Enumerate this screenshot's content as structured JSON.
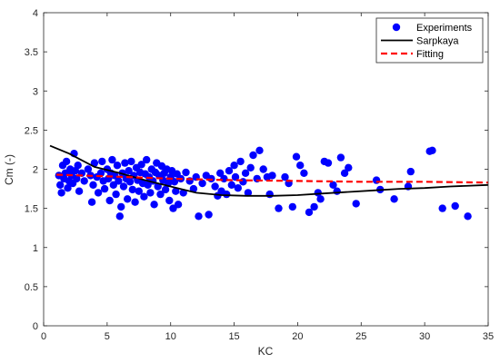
{
  "chart_data": {
    "type": "scatter",
    "title": "",
    "xlabel": "KC",
    "ylabel": "Cm (-)",
    "xlim": [
      0,
      35
    ],
    "ylim": [
      0,
      4
    ],
    "xticks": [
      0,
      5,
      10,
      15,
      20,
      25,
      30,
      35
    ],
    "yticks": [
      0,
      0.5,
      1,
      1.5,
      2,
      2.5,
      3,
      3.5,
      4
    ],
    "xtick_labels": [
      "0",
      "5",
      "10",
      "15",
      "20",
      "25",
      "30",
      "35"
    ],
    "ytick_labels": [
      "0",
      "0.5",
      "1",
      "1.5",
      "2",
      "2.5",
      "3",
      "3.5",
      "4"
    ],
    "grid": false,
    "legend_position": "top-right",
    "series": [
      {
        "name": "Experiments",
        "kind": "scatter",
        "color": "#0000ff",
        "points": [
          [
            1.2,
            1.92
          ],
          [
            1.3,
            1.8
          ],
          [
            1.4,
            1.7
          ],
          [
            1.5,
            2.05
          ],
          [
            1.6,
            1.88
          ],
          [
            1.7,
            1.95
          ],
          [
            1.8,
            2.1
          ],
          [
            1.9,
            1.76
          ],
          [
            2.0,
            1.85
          ],
          [
            2.1,
            2.0
          ],
          [
            2.2,
            1.92
          ],
          [
            2.3,
            1.82
          ],
          [
            2.4,
            2.2
          ],
          [
            2.5,
            1.98
          ],
          [
            2.6,
            1.88
          ],
          [
            2.7,
            2.05
          ],
          [
            2.8,
            1.72
          ],
          [
            3.0,
            1.95
          ],
          [
            3.2,
            1.85
          ],
          [
            3.5,
            2.0
          ],
          [
            3.7,
            1.92
          ],
          [
            3.8,
            1.58
          ],
          [
            3.9,
            1.8
          ],
          [
            4.0,
            2.08
          ],
          [
            4.2,
            1.9
          ],
          [
            4.3,
            1.7
          ],
          [
            4.5,
            1.95
          ],
          [
            4.6,
            2.1
          ],
          [
            4.7,
            1.85
          ],
          [
            4.8,
            1.75
          ],
          [
            5.0,
            2.0
          ],
          [
            5.1,
            1.88
          ],
          [
            5.2,
            1.6
          ],
          [
            5.3,
            1.95
          ],
          [
            5.4,
            2.12
          ],
          [
            5.5,
            1.8
          ],
          [
            5.6,
            1.92
          ],
          [
            5.7,
            1.68
          ],
          [
            5.8,
            2.05
          ],
          [
            5.9,
            1.85
          ],
          [
            6.0,
            1.4
          ],
          [
            6.1,
            1.52
          ],
          [
            6.2,
            1.95
          ],
          [
            6.3,
            1.78
          ],
          [
            6.4,
            2.08
          ],
          [
            6.5,
            1.88
          ],
          [
            6.6,
            1.62
          ],
          [
            6.7,
            1.98
          ],
          [
            6.8,
            1.84
          ],
          [
            6.9,
            2.1
          ],
          [
            7.0,
            1.74
          ],
          [
            7.1,
            1.92
          ],
          [
            7.2,
            1.58
          ],
          [
            7.3,
            2.02
          ],
          [
            7.4,
            1.86
          ],
          [
            7.5,
            1.72
          ],
          [
            7.6,
            1.96
          ],
          [
            7.7,
            2.06
          ],
          [
            7.8,
            1.82
          ],
          [
            7.9,
            1.65
          ],
          [
            8.0,
            1.94
          ],
          [
            8.1,
            2.12
          ],
          [
            8.2,
            1.8
          ],
          [
            8.3,
            1.9
          ],
          [
            8.4,
            1.7
          ],
          [
            8.5,
            2.0
          ],
          [
            8.6,
            1.85
          ],
          [
            8.7,
            1.55
          ],
          [
            8.8,
            1.96
          ],
          [
            8.9,
            2.08
          ],
          [
            9.0,
            1.78
          ],
          [
            9.1,
            1.92
          ],
          [
            9.2,
            1.68
          ],
          [
            9.3,
            2.04
          ],
          [
            9.4,
            1.86
          ],
          [
            9.5,
            1.95
          ],
          [
            9.6,
            1.74
          ],
          [
            9.7,
            2.0
          ],
          [
            9.8,
            1.82
          ],
          [
            9.9,
            1.6
          ],
          [
            10.0,
            1.9
          ],
          [
            10.1,
            1.98
          ],
          [
            10.2,
            1.5
          ],
          [
            10.3,
            1.84
          ],
          [
            10.4,
            1.72
          ],
          [
            10.5,
            1.94
          ],
          [
            10.6,
            1.55
          ],
          [
            10.8,
            1.88
          ],
          [
            11.0,
            1.7
          ],
          [
            11.2,
            1.96
          ],
          [
            11.5,
            1.85
          ],
          [
            11.8,
            1.75
          ],
          [
            12.0,
            1.9
          ],
          [
            12.2,
            1.4
          ],
          [
            12.5,
            1.82
          ],
          [
            12.8,
            1.92
          ],
          [
            13.0,
            1.42
          ],
          [
            13.2,
            1.88
          ],
          [
            13.5,
            1.78
          ],
          [
            13.7,
            1.66
          ],
          [
            13.9,
            1.95
          ],
          [
            14.0,
            1.72
          ],
          [
            14.2,
            1.88
          ],
          [
            14.4,
            1.68
          ],
          [
            14.6,
            1.98
          ],
          [
            14.8,
            1.8
          ],
          [
            15.0,
            2.05
          ],
          [
            15.1,
            1.9
          ],
          [
            15.3,
            1.76
          ],
          [
            15.5,
            2.1
          ],
          [
            15.7,
            1.84
          ],
          [
            15.9,
            1.95
          ],
          [
            16.1,
            1.7
          ],
          [
            16.3,
            2.02
          ],
          [
            16.5,
            2.18
          ],
          [
            16.8,
            1.88
          ],
          [
            17.0,
            2.24
          ],
          [
            17.3,
            2.0
          ],
          [
            17.6,
            1.9
          ],
          [
            17.8,
            1.68
          ],
          [
            18.0,
            1.92
          ],
          [
            18.5,
            1.5
          ],
          [
            19.0,
            1.9
          ],
          [
            19.3,
            1.82
          ],
          [
            19.6,
            1.52
          ],
          [
            19.9,
            2.16
          ],
          [
            20.2,
            2.05
          ],
          [
            20.5,
            1.95
          ],
          [
            20.9,
            1.45
          ],
          [
            21.3,
            1.52
          ],
          [
            21.6,
            1.7
          ],
          [
            21.8,
            1.62
          ],
          [
            22.1,
            2.1
          ],
          [
            22.4,
            2.08
          ],
          [
            22.8,
            1.8
          ],
          [
            23.1,
            1.72
          ],
          [
            23.4,
            2.15
          ],
          [
            23.7,
            1.95
          ],
          [
            24.0,
            2.02
          ],
          [
            24.6,
            1.56
          ],
          [
            26.2,
            1.86
          ],
          [
            26.5,
            1.74
          ],
          [
            27.6,
            1.62
          ],
          [
            28.7,
            1.78
          ],
          [
            28.9,
            1.97
          ],
          [
            30.4,
            2.23
          ],
          [
            30.6,
            2.24
          ],
          [
            31.4,
            1.5
          ],
          [
            32.4,
            1.53
          ],
          [
            33.4,
            1.4
          ]
        ]
      },
      {
        "name": "Sarpkaya",
        "kind": "line",
        "style": "solid",
        "color": "#000000",
        "points": [
          [
            0.5,
            2.3
          ],
          [
            2,
            2.2
          ],
          [
            4,
            2.03
          ],
          [
            6,
            1.95
          ],
          [
            8,
            1.86
          ],
          [
            10,
            1.78
          ],
          [
            12,
            1.7
          ],
          [
            14,
            1.67
          ],
          [
            16,
            1.66
          ],
          [
            18,
            1.66
          ],
          [
            20,
            1.67
          ],
          [
            22,
            1.69
          ],
          [
            24,
            1.71
          ],
          [
            26,
            1.73
          ],
          [
            28,
            1.75
          ],
          [
            30,
            1.76
          ],
          [
            32,
            1.78
          ],
          [
            35,
            1.8
          ]
        ]
      },
      {
        "name": "Fitting",
        "kind": "line",
        "style": "dashed",
        "color": "#ff0000",
        "points": [
          [
            1,
            1.93
          ],
          [
            5,
            1.91
          ],
          [
            10,
            1.88
          ],
          [
            15,
            1.86
          ],
          [
            20,
            1.85
          ],
          [
            25,
            1.84
          ],
          [
            30,
            1.84
          ],
          [
            35,
            1.83
          ]
        ]
      }
    ]
  }
}
